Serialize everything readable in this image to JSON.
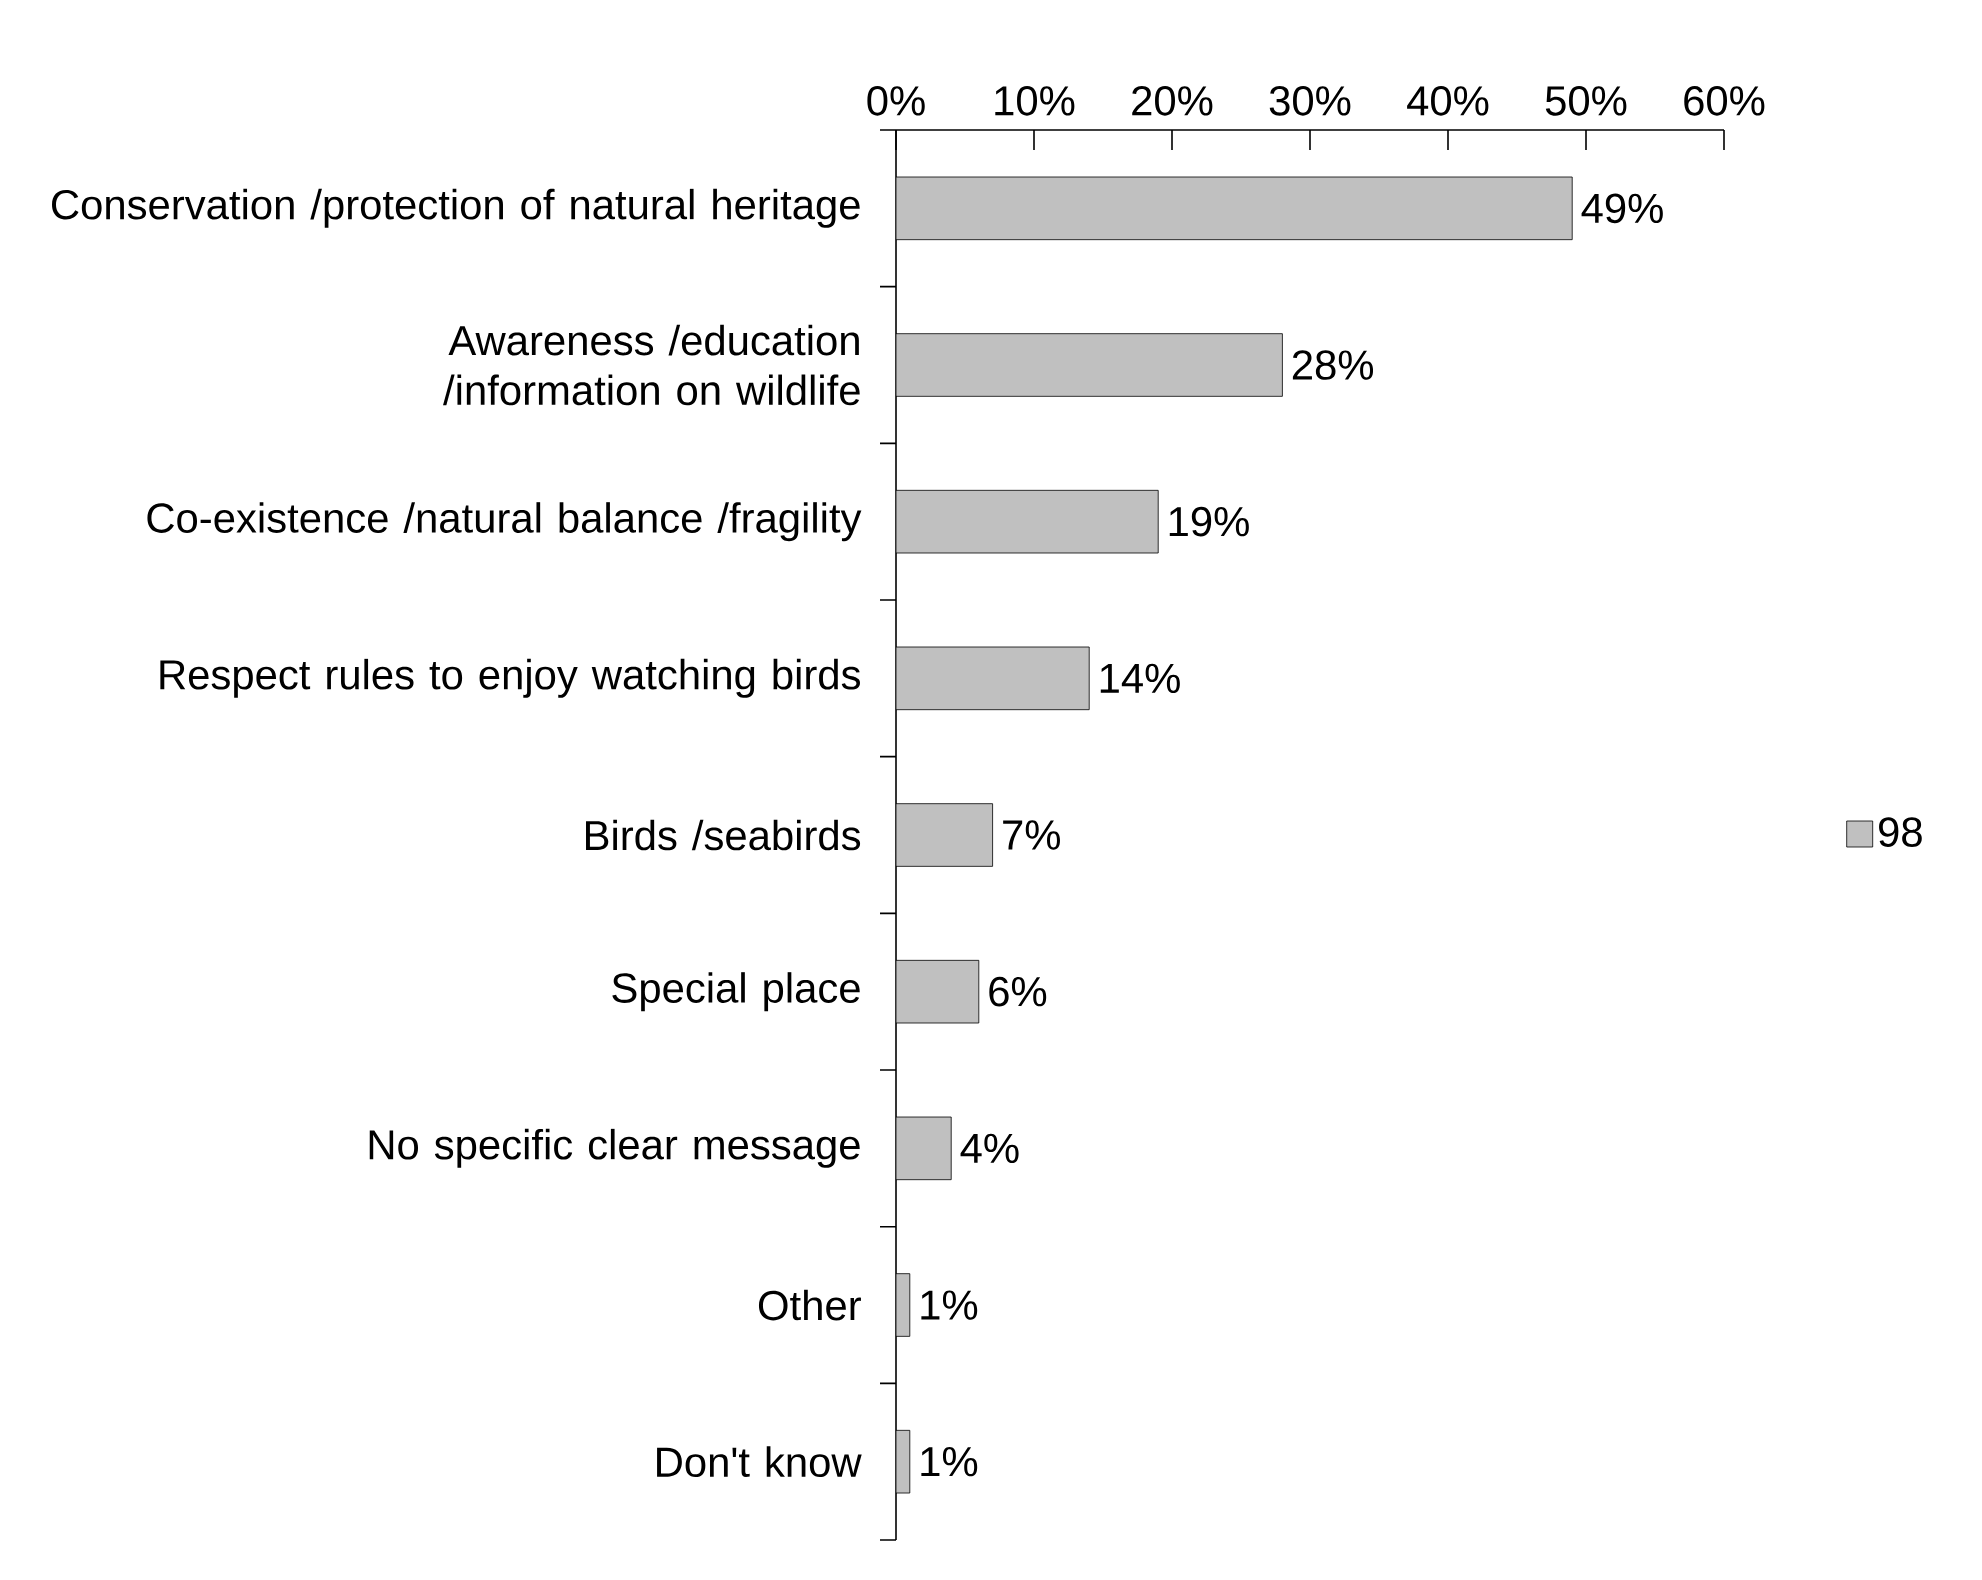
{
  "chart_data": {
    "type": "bar",
    "orientation": "horizontal",
    "categories": [
      "Conservation /protection of natural heritage",
      "Awareness /education /information on wildlife",
      "Co-existence /natural balance /fragility",
      "Respect rules to enjoy watching birds",
      "Birds /seabirds",
      "Special place",
      "No specific clear message",
      "Other",
      "Don't know"
    ],
    "series": [
      {
        "name": "98",
        "color": "#c0c0c0",
        "values": [
          49,
          28,
          19,
          14,
          7,
          6,
          4,
          1,
          1
        ],
        "value_labels": [
          "49%",
          "28%",
          "19%",
          "14%",
          "7%",
          "6%",
          "4%",
          "1%",
          "1%"
        ]
      }
    ],
    "xlim": [
      0,
      60
    ],
    "xticks": [
      {
        "value": 0,
        "label": "0%"
      },
      {
        "value": 10,
        "label": "10%"
      },
      {
        "value": 20,
        "label": "20%"
      },
      {
        "value": 30,
        "label": "30%"
      },
      {
        "value": 40,
        "label": "40%"
      },
      {
        "value": 50,
        "label": "50%"
      },
      {
        "value": 60,
        "label": "60%"
      }
    ],
    "legend": "right"
  }
}
